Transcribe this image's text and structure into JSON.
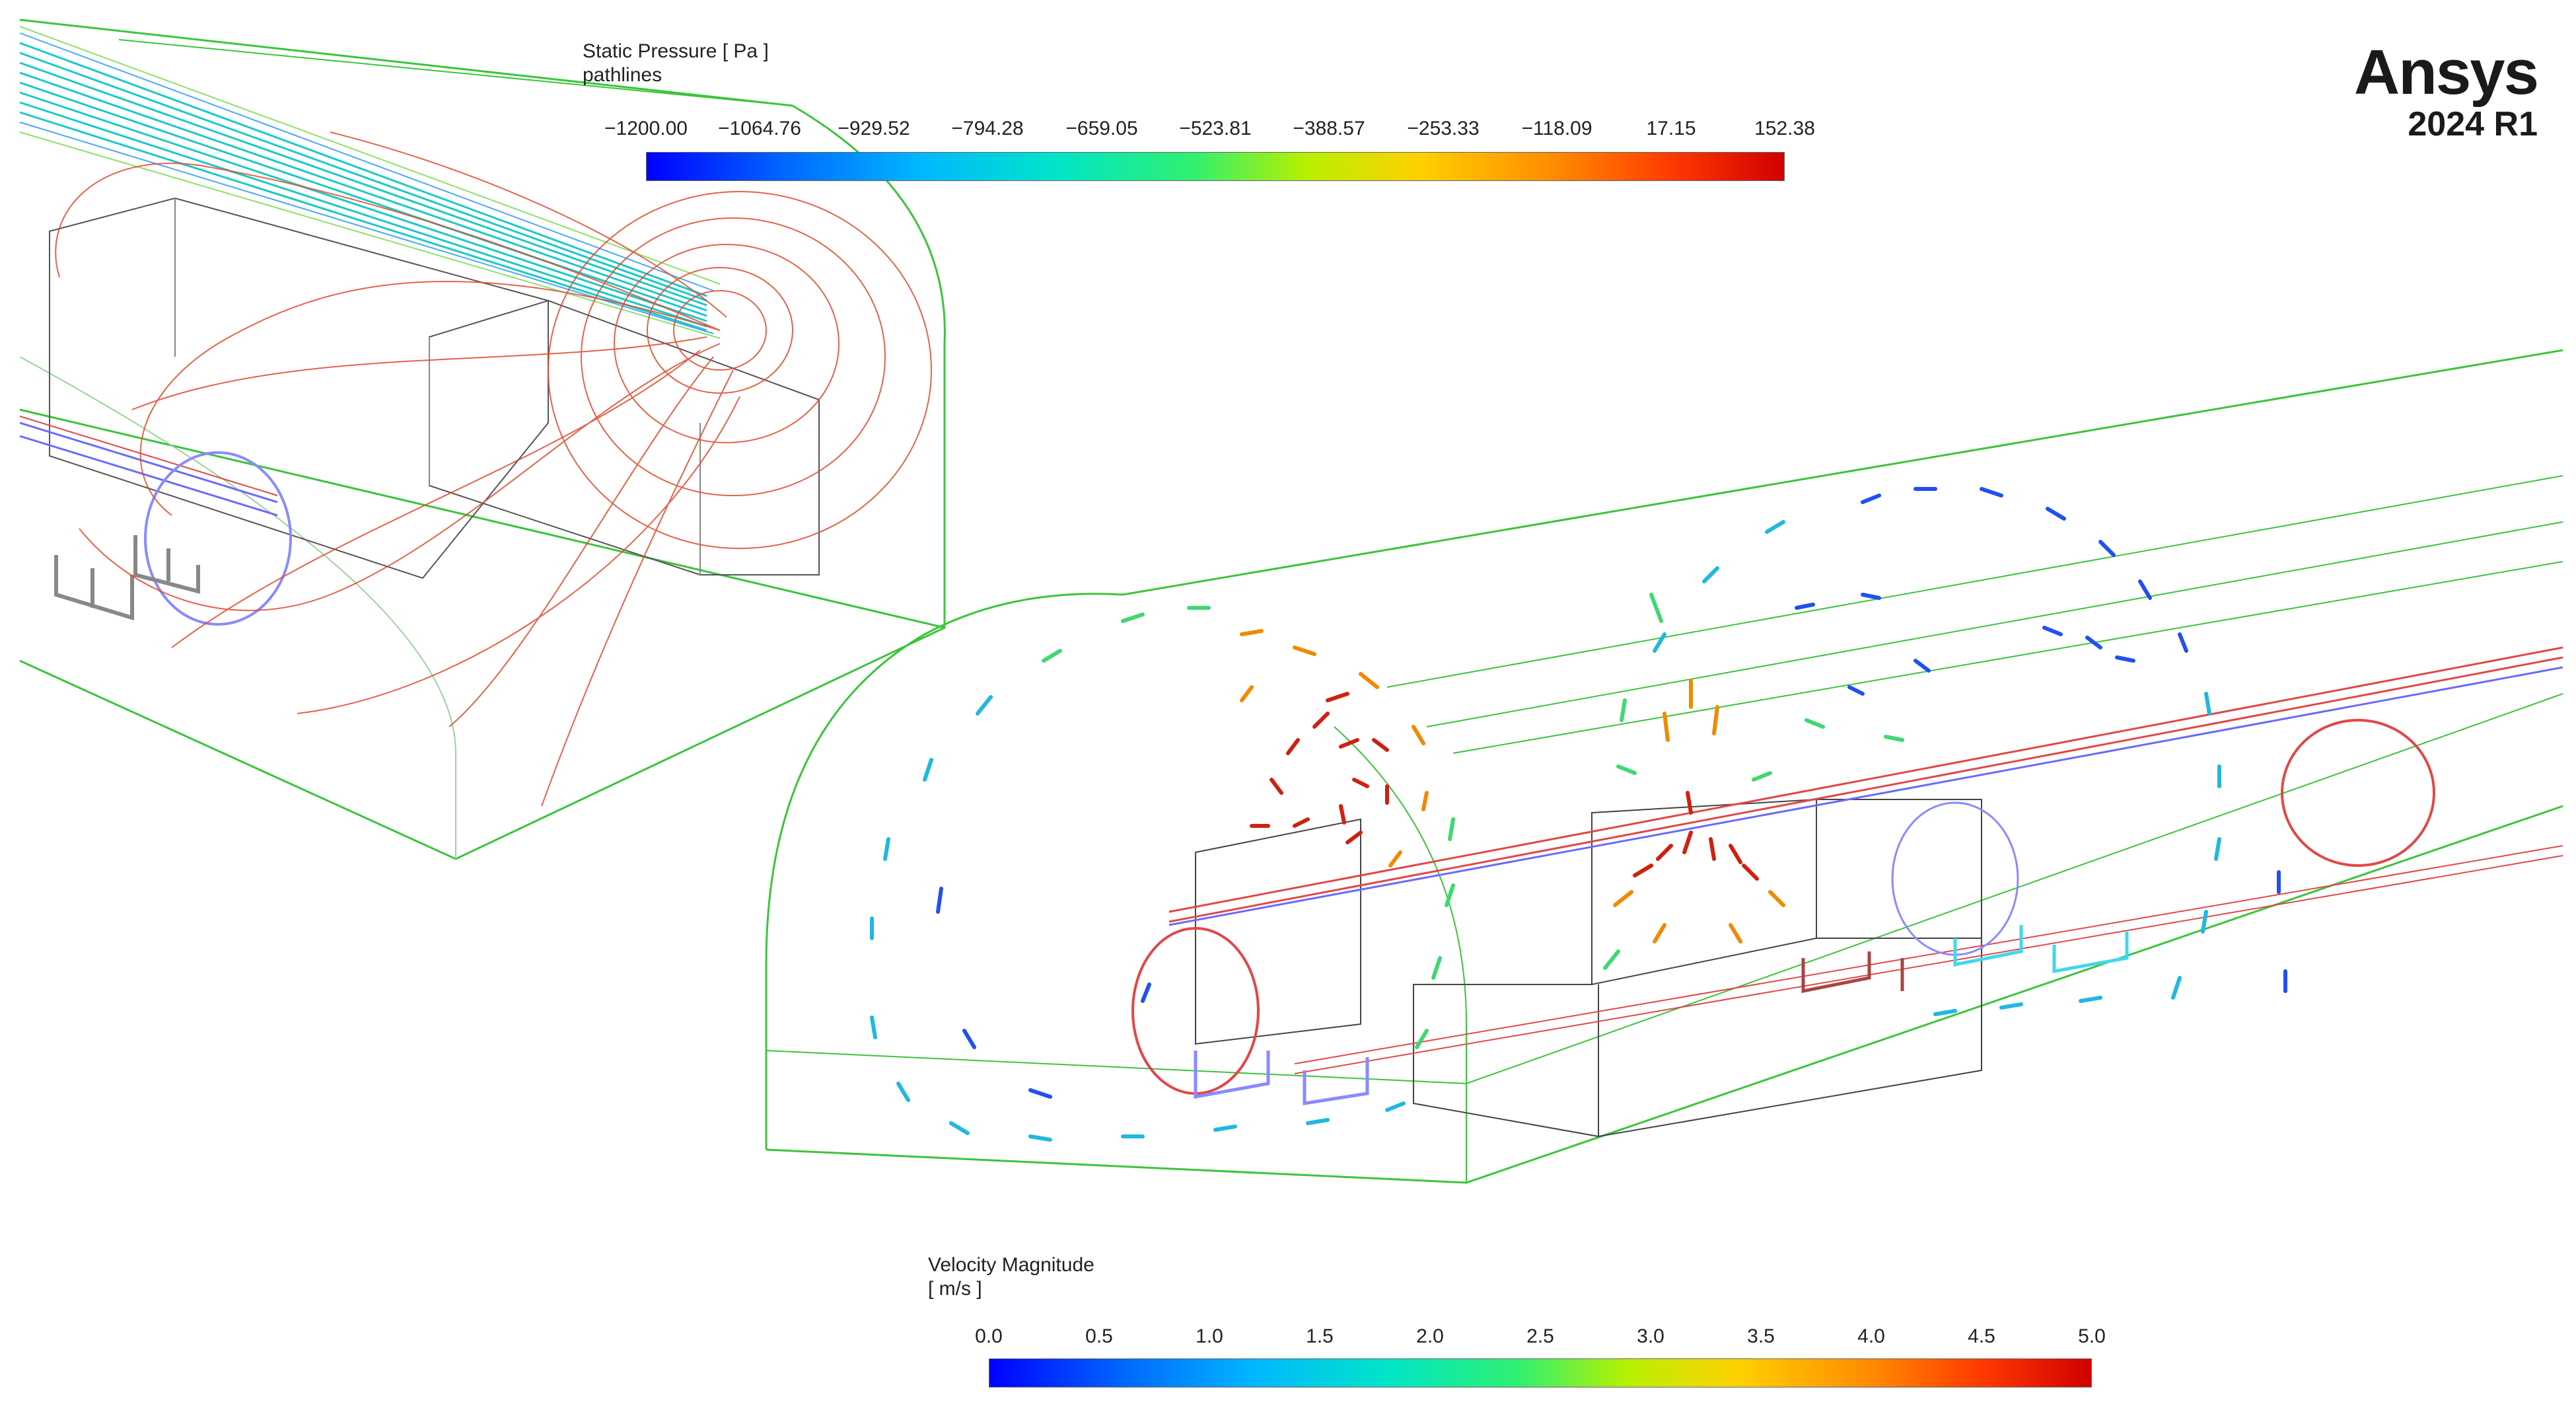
{
  "pressure_legend": {
    "title": "Static Pressure [ Pa ]",
    "subtitle": "pathlines",
    "ticks": [
      "−1200.00",
      "−1064.76",
      "−929.52",
      "−794.28",
      "−659.05",
      "−523.81",
      "−388.57",
      "−253.33",
      "−118.09",
      "17.15",
      "152.38"
    ]
  },
  "velocity_legend": {
    "title": "Velocity Magnitude",
    "subtitle": "[ m/s ]",
    "ticks": [
      "0.0",
      "0.5",
      "1.0",
      "1.5",
      "2.0",
      "2.5",
      "3.0",
      "3.5",
      "4.0",
      "4.5",
      "5.0"
    ]
  },
  "brand": {
    "logo": "Ansys",
    "version": "2024 R1"
  },
  "colors": {
    "low": "#0000ff",
    "mid": "#30f070",
    "high": "#d00000",
    "outline": "#3cc43c",
    "pathline": "#e0482c",
    "jet": "#1ec8c8"
  }
}
